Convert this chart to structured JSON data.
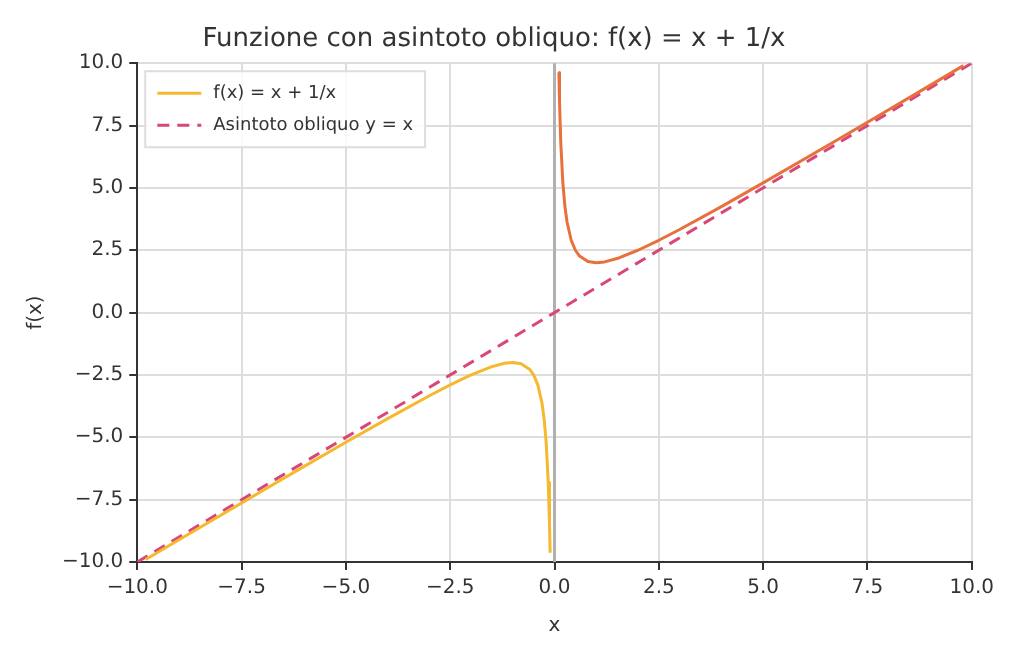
{
  "chart_data": {
    "type": "line",
    "title": "Funzione con asintoto obliquo: f(x) = x + 1/x",
    "xlabel": "x",
    "ylabel": "f(x)",
    "xlim": [
      -10,
      10
    ],
    "ylim": [
      -10,
      10
    ],
    "xticks": [
      {
        "value": -10,
        "label": "−10.0"
      },
      {
        "value": -7.5,
        "label": "−7.5"
      },
      {
        "value": -5,
        "label": "−5.0"
      },
      {
        "value": -2.5,
        "label": "−2.5"
      },
      {
        "value": 0,
        "label": "0.0"
      },
      {
        "value": 2.5,
        "label": "2.5"
      },
      {
        "value": 5,
        "label": "5.0"
      },
      {
        "value": 7.5,
        "label": "7.5"
      },
      {
        "value": 10,
        "label": "10.0"
      }
    ],
    "yticks": [
      {
        "value": -10,
        "label": "−10.0"
      },
      {
        "value": -7.5,
        "label": "−7.5"
      },
      {
        "value": -5,
        "label": "−5.0"
      },
      {
        "value": -2.5,
        "label": "−2.5"
      },
      {
        "value": 0,
        "label": "0.0"
      },
      {
        "value": 2.5,
        "label": "2.5"
      },
      {
        "value": 5,
        "label": "5.0"
      },
      {
        "value": 7.5,
        "label": "7.5"
      },
      {
        "value": 10,
        "label": "10.0"
      }
    ],
    "grid": true,
    "legend": "top left",
    "marker": "none",
    "ref_lines": [
      {
        "axis": "x",
        "value": 0,
        "label": null,
        "color": "#b0b0b0"
      }
    ],
    "series": [
      {
        "name": "f(x) = x + 1/x",
        "color": "#f5b82e",
        "x": [
          -9.8,
          -9,
          -8,
          -7,
          -6,
          -5,
          -4,
          -3,
          -2.5,
          -2,
          -1.5,
          -1.2,
          -1,
          -0.8,
          -0.6,
          -0.5,
          -0.4,
          -0.3,
          -0.25,
          -0.2,
          -0.15,
          -0.12,
          -0.105
        ],
        "values": [
          -9.902,
          -9.111,
          -8.125,
          -7.143,
          -6.167,
          -5.2,
          -4.25,
          -3.333,
          -2.9,
          -2.5,
          -2.167,
          -2.033,
          -2,
          -2.05,
          -2.267,
          -2.5,
          -2.9,
          -3.633,
          -4.25,
          -5.2,
          -6.817,
          -8.453,
          -9.629
        ]
      },
      {
        "color": "#e8703a",
        "x": [
          0.105,
          0.12,
          0.15,
          0.2,
          0.25,
          0.3,
          0.4,
          0.5,
          0.6,
          0.8,
          1,
          1.2,
          1.5,
          2,
          2.5,
          3,
          4,
          5,
          6,
          7,
          8,
          9,
          9.8
        ],
        "values": [
          9.629,
          8.453,
          6.817,
          5.2,
          4.25,
          3.633,
          2.9,
          2.5,
          2.267,
          2.05,
          2,
          2.033,
          2.167,
          2.5,
          2.9,
          3.333,
          4.25,
          5.2,
          6.167,
          7.143,
          8.125,
          9.111,
          9.902
        ]
      },
      {
        "name": "Asintoto obliquo y = x",
        "color": "#d9467a",
        "line_style": "dashed",
        "x": [
          -10,
          10
        ],
        "values": [
          -10,
          10
        ]
      }
    ]
  }
}
